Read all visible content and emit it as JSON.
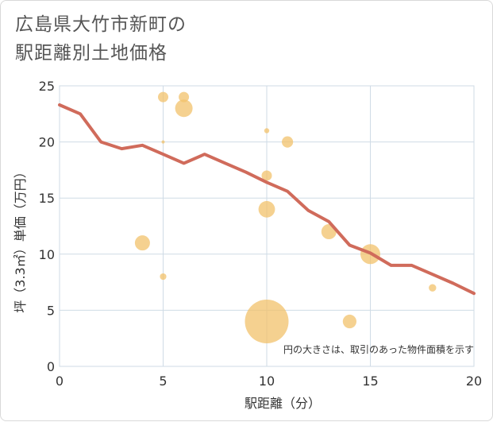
{
  "chart_data": {
    "type": "scatter",
    "title_lines": [
      "広島県大竹市新町の",
      "駅距離別土地価格"
    ],
    "xlabel": "駅距離（分）",
    "ylabel": "坪（3.3㎡）単価（万円）",
    "xlim": [
      0,
      20
    ],
    "ylim": [
      0,
      25
    ],
    "xticks": [
      0,
      5,
      10,
      15,
      20
    ],
    "yticks": [
      0,
      5,
      10,
      15,
      20,
      25
    ],
    "grid": true,
    "annotation": "円の大きさは、取引のあった物件面積を示す",
    "bubbles": [
      {
        "x": 4,
        "y": 11,
        "size": 3
      },
      {
        "x": 5,
        "y": 24,
        "size": 2
      },
      {
        "x": 5,
        "y": 20,
        "size": 0.5
      },
      {
        "x": 5,
        "y": 8,
        "size": 1.2
      },
      {
        "x": 6,
        "y": 24,
        "size": 2
      },
      {
        "x": 6,
        "y": 23,
        "size": 3.5
      },
      {
        "x": 10,
        "y": 21,
        "size": 0.9
      },
      {
        "x": 10,
        "y": 17,
        "size": 2
      },
      {
        "x": 10,
        "y": 14,
        "size": 3.3
      },
      {
        "x": 10,
        "y": 4,
        "size": 9
      },
      {
        "x": 11,
        "y": 20,
        "size": 2.2
      },
      {
        "x": 13,
        "y": 12,
        "size": 3
      },
      {
        "x": 14,
        "y": 4,
        "size": 2.7
      },
      {
        "x": 15,
        "y": 10,
        "size": 4
      },
      {
        "x": 18,
        "y": 7,
        "size": 1.4
      }
    ],
    "series": [
      {
        "name": "trend",
        "color": "#d06b5b",
        "x": [
          0,
          1,
          2,
          3,
          4,
          5,
          6,
          7,
          8,
          9,
          10,
          11,
          12,
          13,
          14,
          15,
          16,
          17,
          18,
          19,
          20
        ],
        "y": [
          23.3,
          22.5,
          20.0,
          19.4,
          19.7,
          18.9,
          18.1,
          18.9,
          18.1,
          17.3,
          16.4,
          15.6,
          13.9,
          12.9,
          10.8,
          10.1,
          9.0,
          9.0,
          8.2,
          7.4,
          6.5
        ]
      }
    ],
    "colors": {
      "bubble": "#f2c16b",
      "line": "#d06b5b",
      "grid": "#cfdbe6"
    }
  }
}
